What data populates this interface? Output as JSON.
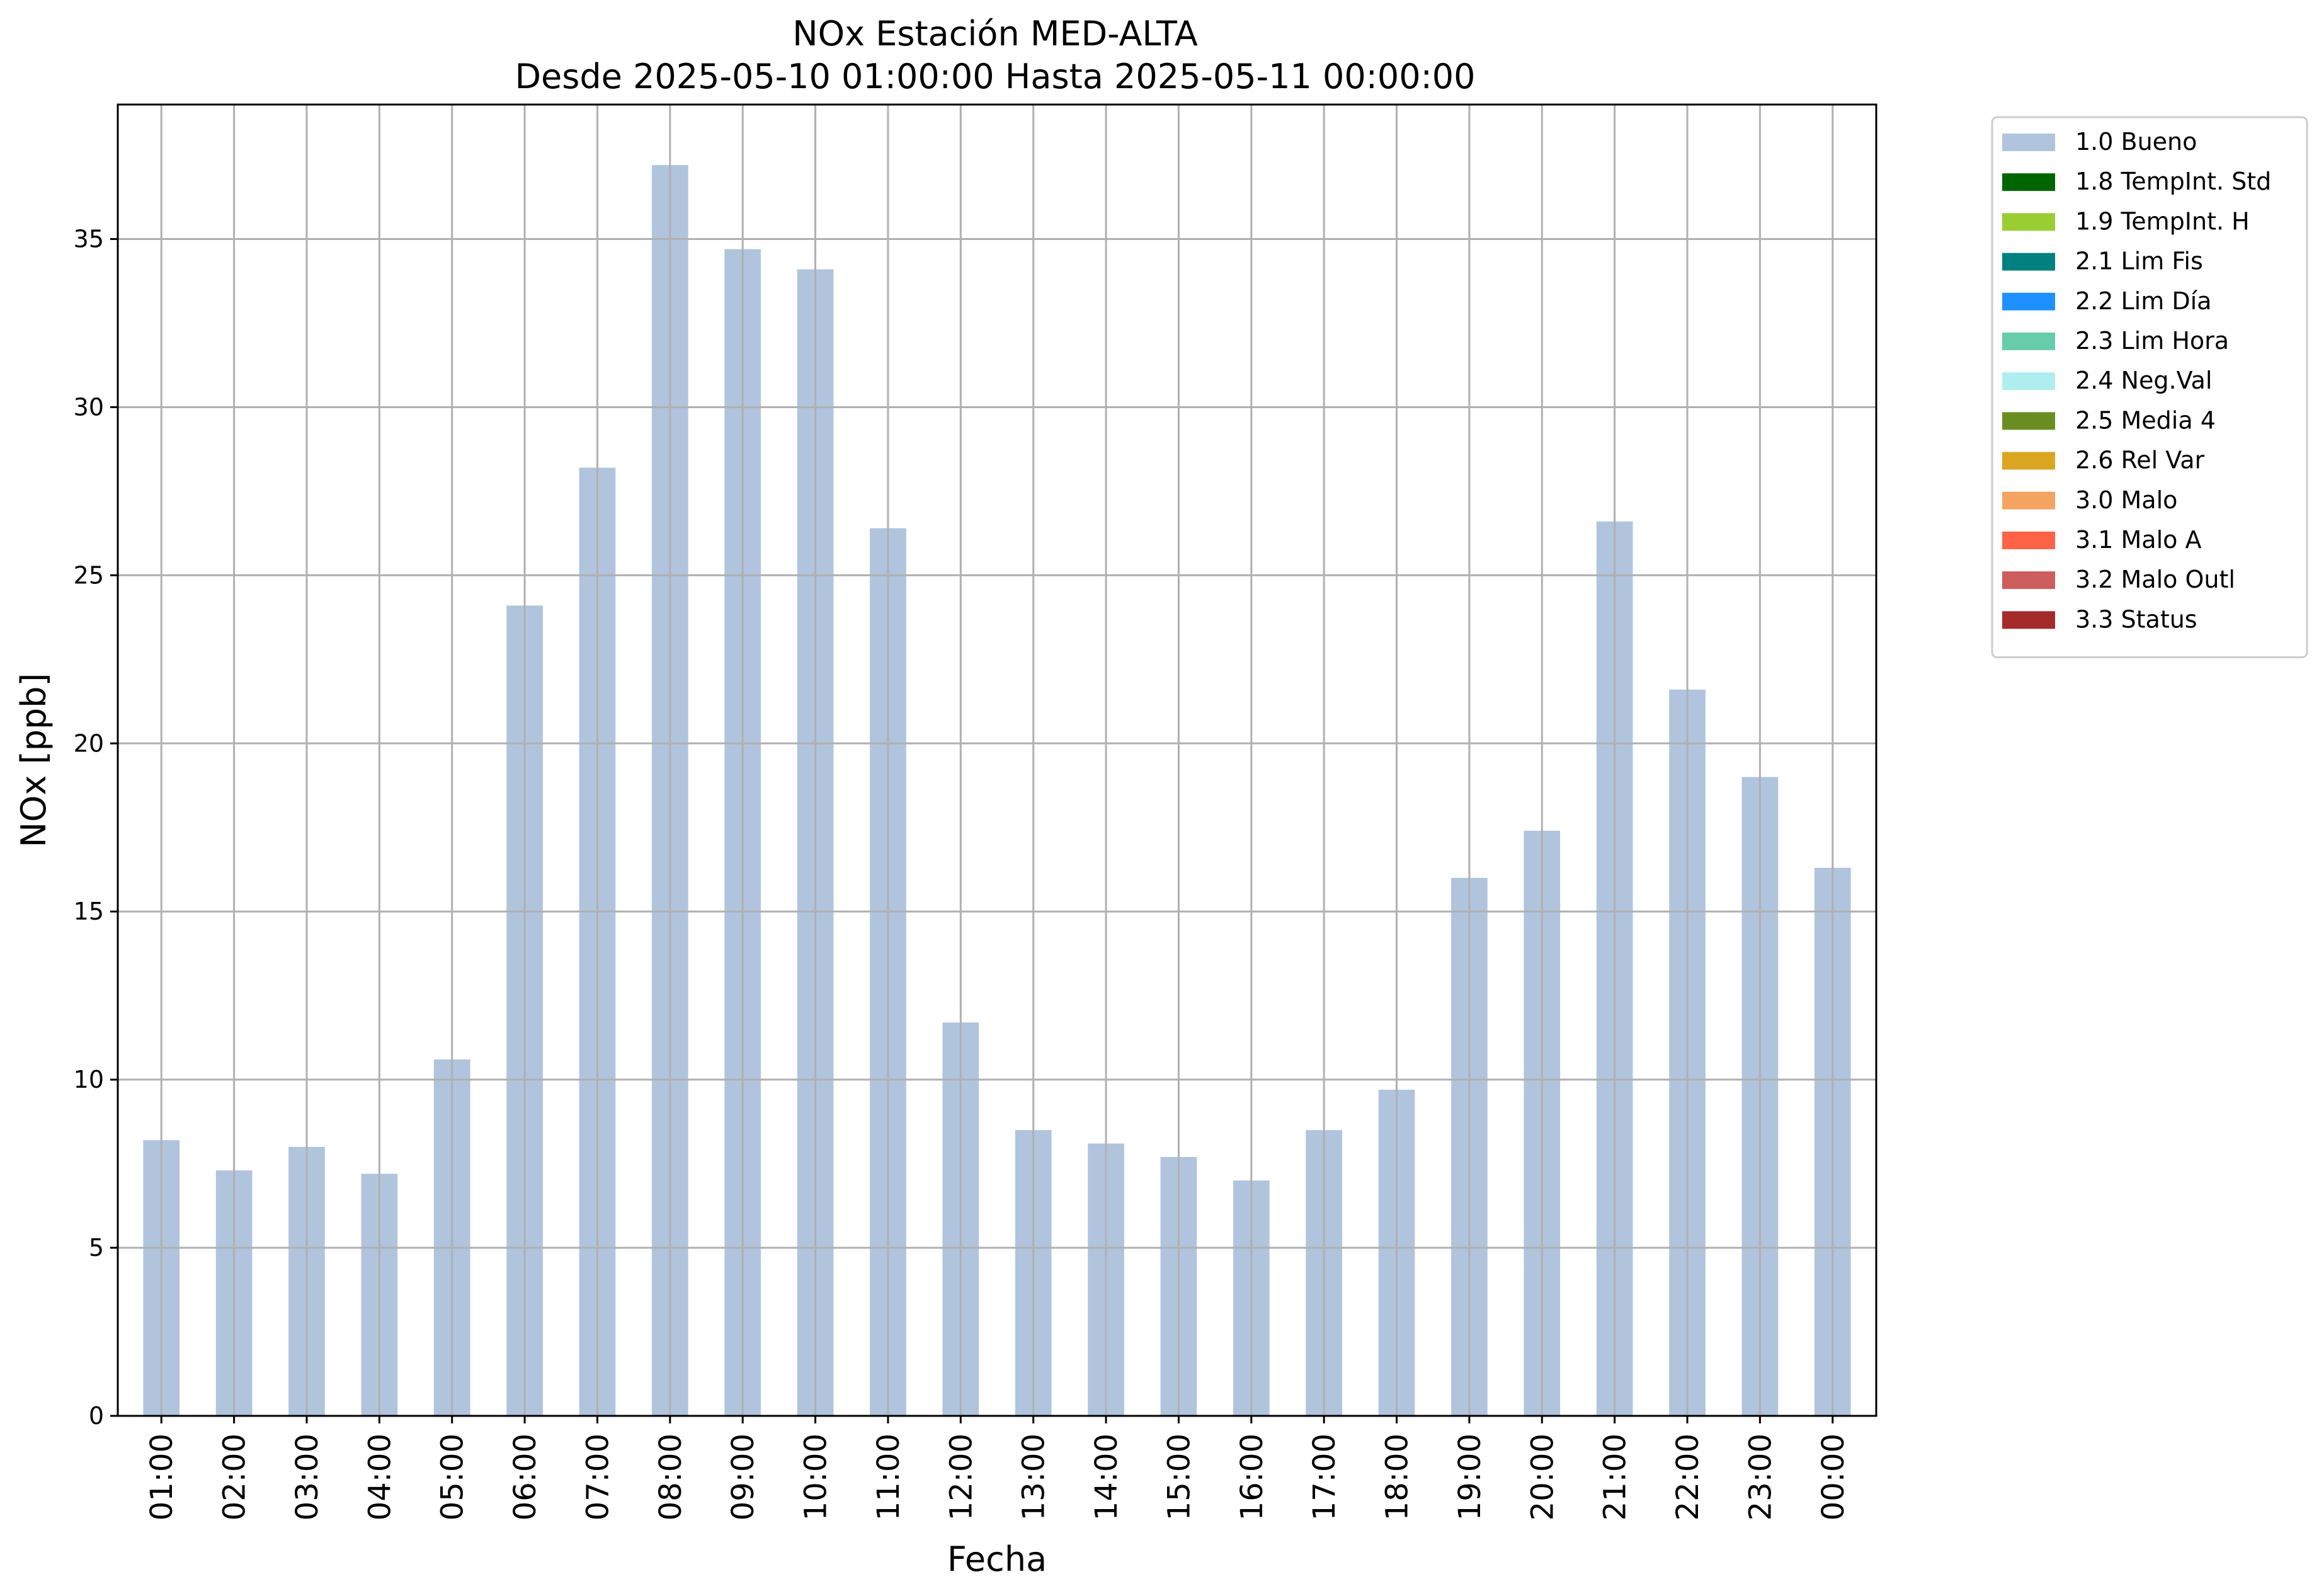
{
  "chart_data": {
    "type": "bar",
    "title": "NOx Estación MED-ALTA",
    "subtitle": "Desde 2025-05-10 01:00:00 Hasta 2025-05-11 00:00:00",
    "xlabel": "Fecha",
    "ylabel": "NOx [ppb]",
    "ylim": [
      0,
      39
    ],
    "yticks": [
      0,
      5,
      10,
      15,
      20,
      25,
      30,
      35
    ],
    "grid": true,
    "legend_position": "outside-top-right",
    "categories": [
      "01:00",
      "02:00",
      "03:00",
      "04:00",
      "05:00",
      "06:00",
      "07:00",
      "08:00",
      "09:00",
      "10:00",
      "11:00",
      "12:00",
      "13:00",
      "14:00",
      "15:00",
      "16:00",
      "17:00",
      "18:00",
      "19:00",
      "20:00",
      "21:00",
      "22:00",
      "23:00",
      "00:00"
    ],
    "series": [
      {
        "name": "1.0 Bueno",
        "color": "#b0c4de",
        "values": [
          8.2,
          7.3,
          8.0,
          7.2,
          10.6,
          24.1,
          28.2,
          37.2,
          34.7,
          34.1,
          26.4,
          11.7,
          8.5,
          8.1,
          7.7,
          7.0,
          8.5,
          9.7,
          16.0,
          17.4,
          26.6,
          21.6,
          19.0,
          16.3
        ]
      }
    ],
    "legend": [
      {
        "label": "1.0 Bueno",
        "color": "#b0c4de"
      },
      {
        "label": "1.8 TempInt. Std",
        "color": "#006400"
      },
      {
        "label": "1.9 TempInt. H",
        "color": "#9acd32"
      },
      {
        "label": "2.1 Lim Fis",
        "color": "#008080"
      },
      {
        "label": "2.2 Lim Día",
        "color": "#1e90ff"
      },
      {
        "label": "2.3 Lim Hora",
        "color": "#66cdaa"
      },
      {
        "label": "2.4 Neg.Val",
        "color": "#afeeee"
      },
      {
        "label": "2.5 Media 4",
        "color": "#6b8e23"
      },
      {
        "label": "2.6 Rel Var",
        "color": "#daa520"
      },
      {
        "label": "3.0 Malo",
        "color": "#f4a460"
      },
      {
        "label": "3.1 Malo A",
        "color": "#ff6347"
      },
      {
        "label": "3.2 Malo Outl",
        "color": "#cd5c5c"
      },
      {
        "label": "3.3 Status",
        "color": "#a52a2a"
      }
    ]
  }
}
